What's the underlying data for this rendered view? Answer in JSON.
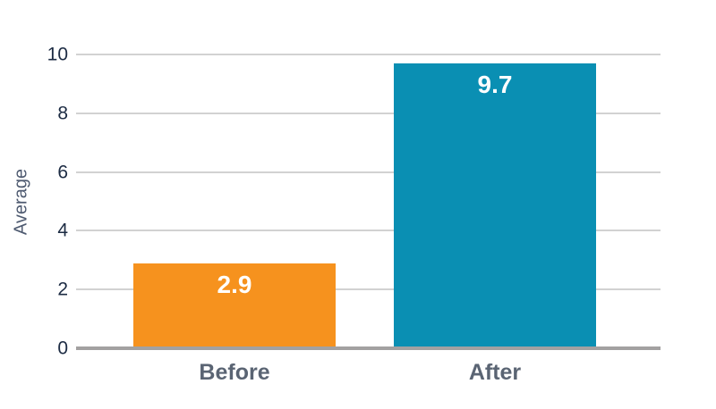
{
  "chart_data": {
    "type": "bar",
    "title": "",
    "categories": [
      "Before",
      "After"
    ],
    "values": [
      2.9,
      9.7
    ],
    "series": [
      {
        "name": "Average",
        "values": [
          2.9,
          9.7
        ]
      }
    ],
    "bar_colors": [
      "#F6921E",
      "#0A8FB3"
    ],
    "xlabel": "",
    "ylabel": "Average",
    "ylim": [
      0,
      10
    ],
    "yticks": [
      0,
      2,
      4,
      6,
      8,
      10
    ],
    "grid": true,
    "legend_position": "none",
    "value_label_color": "#ffffff"
  },
  "style": {
    "background": "#ffffff",
    "grid_color": "#d2d2d2",
    "axis_color": "#a3a1a1",
    "tick_label_color": "#1c2b43",
    "category_label_color": "#5a6473",
    "ylabel_color": "#4e5a70"
  }
}
